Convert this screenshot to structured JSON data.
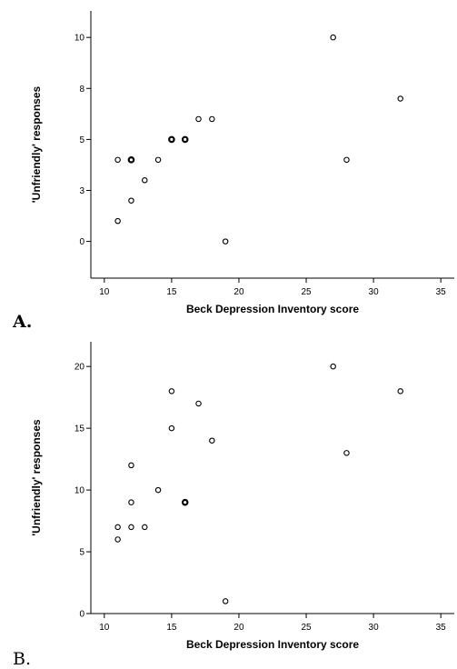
{
  "chart_data": [
    {
      "type": "scatter",
      "panel_label": "A.",
      "xlabel": "Beck Depression Inventory score",
      "ylabel": "'Unfriendly' responses",
      "xlim": [
        9,
        36
      ],
      "ylim": [
        -1.8,
        11.3
      ],
      "xticks": [
        10,
        15,
        20,
        25,
        30,
        35
      ],
      "yticks": [
        {
          "value": 0,
          "label": "0"
        },
        {
          "value": 2.5,
          "label": "3"
        },
        {
          "value": 5,
          "label": "5"
        },
        {
          "value": 7.5,
          "label": "8"
        },
        {
          "value": 10,
          "label": "10"
        }
      ],
      "grid": false,
      "points": [
        {
          "x": 11,
          "y": 4
        },
        {
          "x": 11,
          "y": 1
        },
        {
          "x": 12,
          "y": 4,
          "n": 2
        },
        {
          "x": 12,
          "y": 2
        },
        {
          "x": 13,
          "y": 3
        },
        {
          "x": 14,
          "y": 4
        },
        {
          "x": 15,
          "y": 5,
          "n": 2
        },
        {
          "x": 16,
          "y": 5,
          "n": 2
        },
        {
          "x": 17,
          "y": 6
        },
        {
          "x": 18,
          "y": 6
        },
        {
          "x": 19,
          "y": 0
        },
        {
          "x": 27,
          "y": 10
        },
        {
          "x": 28,
          "y": 4
        },
        {
          "x": 32,
          "y": 7
        }
      ]
    },
    {
      "type": "scatter",
      "panel_label": "B.",
      "xlabel": "Beck Depression Inventory score",
      "ylabel": "'Unfriendly' responses",
      "xlim": [
        9,
        36
      ],
      "ylim": [
        0,
        22
      ],
      "xticks": [
        10,
        15,
        20,
        25,
        30,
        35
      ],
      "yticks": [
        {
          "value": 0,
          "label": "0"
        },
        {
          "value": 5,
          "label": "5"
        },
        {
          "value": 10,
          "label": "10"
        },
        {
          "value": 15,
          "label": "15"
        },
        {
          "value": 20,
          "label": "20"
        }
      ],
      "grid": false,
      "points": [
        {
          "x": 11,
          "y": 7
        },
        {
          "x": 11,
          "y": 6
        },
        {
          "x": 12,
          "y": 12
        },
        {
          "x": 12,
          "y": 9
        },
        {
          "x": 12,
          "y": 7
        },
        {
          "x": 13,
          "y": 7
        },
        {
          "x": 14,
          "y": 10
        },
        {
          "x": 15,
          "y": 18
        },
        {
          "x": 15,
          "y": 15
        },
        {
          "x": 16,
          "y": 9,
          "n": 2
        },
        {
          "x": 17,
          "y": 17
        },
        {
          "x": 18,
          "y": 14
        },
        {
          "x": 19,
          "y": 1
        },
        {
          "x": 27,
          "y": 20
        },
        {
          "x": 28,
          "y": 13
        },
        {
          "x": 32,
          "y": 18
        }
      ]
    }
  ]
}
